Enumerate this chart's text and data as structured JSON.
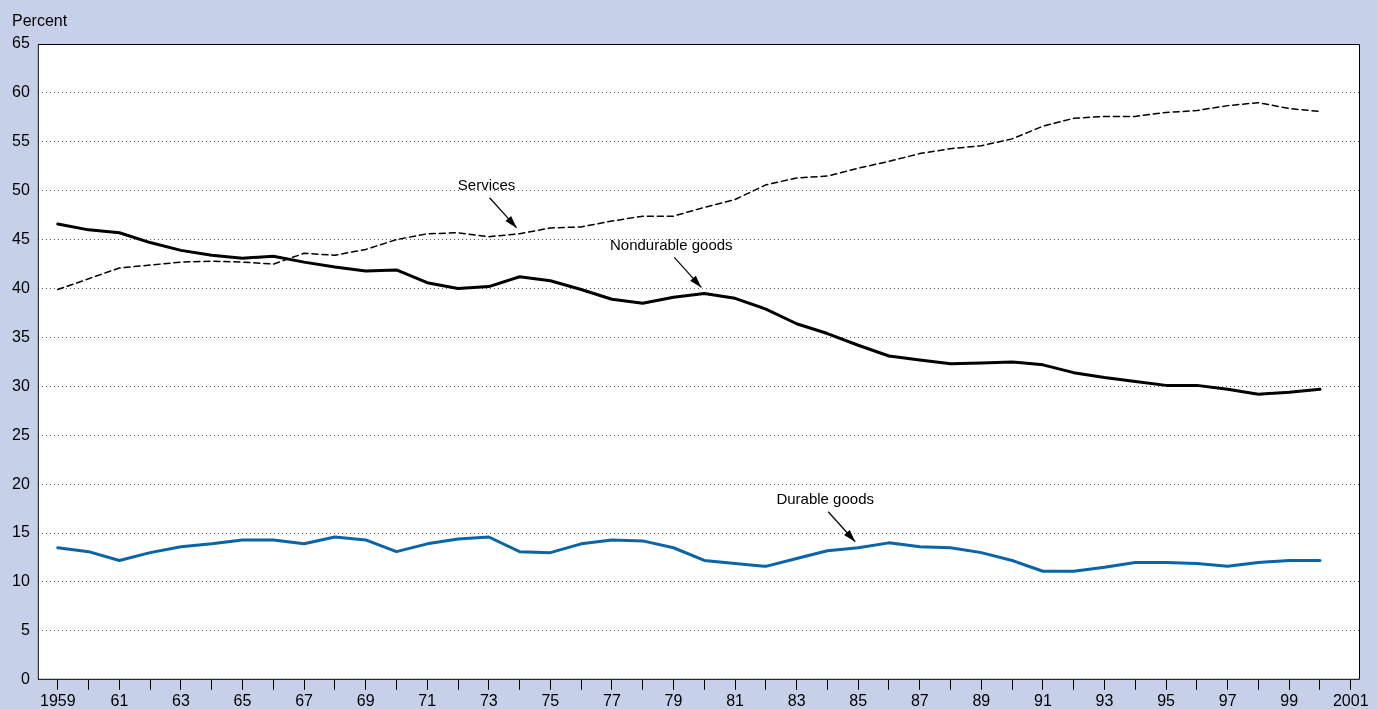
{
  "chart_data": {
    "type": "line",
    "ylabel": "Percent",
    "x": [
      1959,
      1960,
      1961,
      1962,
      1963,
      1964,
      1965,
      1966,
      1967,
      1968,
      1969,
      1970,
      1971,
      1972,
      1973,
      1974,
      1975,
      1976,
      1977,
      1978,
      1979,
      1980,
      1981,
      1982,
      1983,
      1984,
      1985,
      1986,
      1987,
      1988,
      1989,
      1990,
      1991,
      1992,
      1993,
      1994,
      1995,
      1996,
      1997,
      1998,
      1999,
      2000
    ],
    "series": [
      {
        "color": "#000000",
        "line_style": "solid",
        "values": [
          46.6,
          46.0,
          45.7,
          44.7,
          43.9,
          43.4,
          43.1,
          43.3,
          42.7,
          42.2,
          41.8,
          41.9,
          40.6,
          40.0,
          40.2,
          41.2,
          40.8,
          39.9,
          38.9,
          38.5,
          39.1,
          39.5,
          39.0,
          37.9,
          36.4,
          35.4,
          34.2,
          33.1,
          32.7,
          32.3,
          32.4,
          32.5,
          32.2,
          31.4,
          30.9,
          30.5,
          30.1,
          30.1,
          29.7,
          29.2,
          29.4,
          29.7
        ]
      },
      {
        "color": "#000000",
        "line_style": "dashed",
        "values": [
          39.9,
          41.0,
          42.1,
          42.4,
          42.7,
          42.8,
          42.7,
          42.5,
          43.6,
          43.4,
          44.0,
          45.0,
          45.6,
          45.7,
          45.3,
          45.6,
          46.2,
          46.3,
          46.9,
          47.4,
          47.4,
          48.3,
          49.1,
          50.6,
          51.3,
          51.5,
          52.3,
          53.0,
          53.8,
          54.3,
          54.6,
          55.3,
          56.6,
          57.4,
          57.6,
          57.6,
          58.0,
          58.2,
          58.7,
          59.0,
          58.4,
          58.1
        ]
      },
      {
        "color": "#0a64a8",
        "line_style": "solid",
        "values": [
          13.5,
          13.1,
          12.2,
          13.0,
          13.6,
          13.9,
          14.3,
          14.3,
          13.9,
          14.6,
          14.3,
          13.1,
          13.9,
          14.4,
          14.6,
          13.1,
          13.0,
          13.9,
          14.3,
          14.2,
          13.5,
          12.2,
          11.9,
          11.6,
          12.4,
          13.2,
          13.5,
          14.0,
          13.6,
          13.5,
          13.0,
          12.2,
          11.1,
          11.1,
          11.5,
          12.0,
          12.0,
          11.9,
          11.6,
          12.0,
          12.2,
          12.2
        ]
      }
    ],
    "xlim": [
      1958.35,
      2001.3
    ],
    "xticks": [
      {
        "value": 1959,
        "label": "1959"
      },
      {
        "value": 1960,
        "label": null
      },
      {
        "value": 1961,
        "label": "61"
      },
      {
        "value": 1962,
        "label": null
      },
      {
        "value": 1963,
        "label": "63"
      },
      {
        "value": 1964,
        "label": null
      },
      {
        "value": 1965,
        "label": "65"
      },
      {
        "value": 1966,
        "label": null
      },
      {
        "value": 1967,
        "label": "67"
      },
      {
        "value": 1968,
        "label": null
      },
      {
        "value": 1969,
        "label": "69"
      },
      {
        "value": 1970,
        "label": null
      },
      {
        "value": 1971,
        "label": "71"
      },
      {
        "value": 1972,
        "label": null
      },
      {
        "value": 1973,
        "label": "73"
      },
      {
        "value": 1974,
        "label": null
      },
      {
        "value": 1975,
        "label": "75"
      },
      {
        "value": 1976,
        "label": null
      },
      {
        "value": 1977,
        "label": "77"
      },
      {
        "value": 1978,
        "label": null
      },
      {
        "value": 1979,
        "label": "79"
      },
      {
        "value": 1980,
        "label": null
      },
      {
        "value": 1981,
        "label": "81"
      },
      {
        "value": 1982,
        "label": null
      },
      {
        "value": 1983,
        "label": "83"
      },
      {
        "value": 1984,
        "label": null
      },
      {
        "value": 1985,
        "label": "85"
      },
      {
        "value": 1986,
        "label": null
      },
      {
        "value": 1987,
        "label": "87"
      },
      {
        "value": 1988,
        "label": null
      },
      {
        "value": 1989,
        "label": "89"
      },
      {
        "value": 1990,
        "label": null
      },
      {
        "value": 1991,
        "label": "91"
      },
      {
        "value": 1992,
        "label": null
      },
      {
        "value": 1993,
        "label": "93"
      },
      {
        "value": 1994,
        "label": null
      },
      {
        "value": 1995,
        "label": "95"
      },
      {
        "value": 1996,
        "label": null
      },
      {
        "value": 1997,
        "label": "97"
      },
      {
        "value": 1998,
        "label": null
      },
      {
        "value": 1999,
        "label": "99"
      },
      {
        "value": 2000,
        "label": null
      },
      {
        "value": 2001,
        "label": "2001"
      }
    ],
    "ylim": [
      0,
      65
    ],
    "yticks": [
      0,
      5,
      10,
      15,
      20,
      25,
      30,
      35,
      40,
      45,
      50,
      55,
      60,
      65
    ],
    "grid": "y",
    "marker": "none",
    "annotations": [
      {
        "text": "Services",
        "x": 1974,
        "y": 45.6
      },
      {
        "text": "Nondurable goods",
        "x": 1980,
        "y": 39.5
      },
      {
        "text": "Durable goods",
        "x": 1985,
        "y": 13.5
      }
    ]
  }
}
